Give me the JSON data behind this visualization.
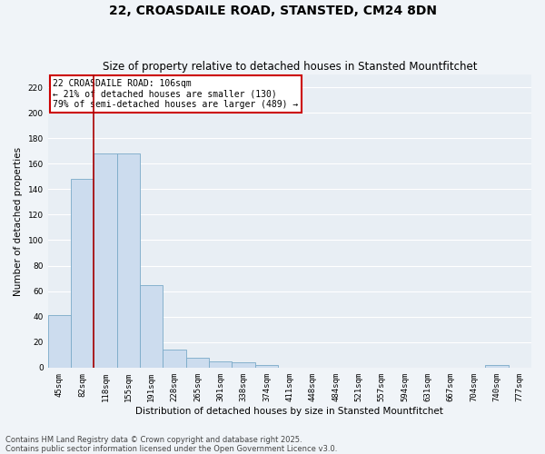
{
  "title": "22, CROASDAILE ROAD, STANSTED, CM24 8DN",
  "subtitle": "Size of property relative to detached houses in Stansted Mountfitchet",
  "xlabel": "Distribution of detached houses by size in Stansted Mountfitchet",
  "ylabel": "Number of detached properties",
  "categories": [
    "45sqm",
    "82sqm",
    "118sqm",
    "155sqm",
    "191sqm",
    "228sqm",
    "265sqm",
    "301sqm",
    "338sqm",
    "374sqm",
    "411sqm",
    "448sqm",
    "484sqm",
    "521sqm",
    "557sqm",
    "594sqm",
    "631sqm",
    "667sqm",
    "704sqm",
    "740sqm",
    "777sqm"
  ],
  "values": [
    41,
    148,
    168,
    168,
    65,
    14,
    8,
    5,
    4,
    2,
    0,
    0,
    0,
    0,
    0,
    0,
    0,
    0,
    0,
    2,
    0
  ],
  "bar_color": "#ccdcee",
  "bar_edge_color": "#7aaac8",
  "property_line_color": "#aa0000",
  "annotation_text": "22 CROASDAILE ROAD: 106sqm\n← 21% of detached houses are smaller (130)\n79% of semi-detached houses are larger (489) →",
  "annotation_box_color": "#cc0000",
  "ylim": [
    0,
    230
  ],
  "yticks": [
    0,
    20,
    40,
    60,
    80,
    100,
    120,
    140,
    160,
    180,
    200,
    220
  ],
  "footer_line1": "Contains HM Land Registry data © Crown copyright and database right 2025.",
  "footer_line2": "Contains public sector information licensed under the Open Government Licence v3.0.",
  "bg_color": "#f0f4f8",
  "plot_bg_color": "#e8eef4",
  "grid_color": "#ffffff",
  "title_fontsize": 10,
  "subtitle_fontsize": 8.5,
  "axis_label_fontsize": 7.5,
  "tick_fontsize": 6.5,
  "annotation_fontsize": 7,
  "footer_fontsize": 6
}
